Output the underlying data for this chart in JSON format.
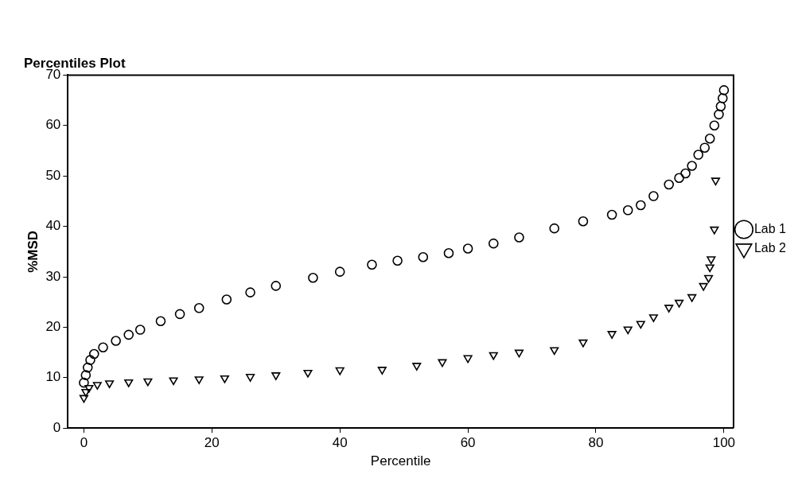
{
  "chart_data": {
    "type": "scatter",
    "title": "Percentiles Plot",
    "xlabel": "Percentile",
    "ylabel": "%MSD",
    "xlim": [
      -2.5,
      101.5
    ],
    "ylim": [
      0,
      70
    ],
    "xticks": [
      0,
      20,
      40,
      60,
      80,
      100
    ],
    "yticks": [
      0,
      10,
      20,
      30,
      40,
      50,
      60,
      70
    ],
    "grid": false,
    "legend": "right",
    "series": [
      {
        "name": "Lab 1",
        "color": "#000000",
        "marker": "circle",
        "x": [
          0,
          0.3,
          0.6,
          1,
          1.6,
          3,
          5,
          7,
          8.8,
          12,
          15,
          18,
          22.3,
          26,
          30,
          35.8,
          40,
          45,
          49,
          53,
          57,
          60,
          64,
          68,
          73.5,
          78,
          82.5,
          85,
          87,
          89,
          91.4,
          93,
          94,
          95,
          96,
          97,
          97.8,
          98.5,
          99.2,
          99.5,
          99.8,
          100
        ],
        "values": [
          9,
          10.5,
          12,
          13.5,
          14.7,
          16,
          17.3,
          18.5,
          19.5,
          21.2,
          22.6,
          23.8,
          25.5,
          26.9,
          28.2,
          29.8,
          31,
          32.4,
          33.2,
          33.9,
          34.7,
          35.6,
          36.6,
          37.8,
          39.6,
          41,
          42.3,
          43.2,
          44.2,
          46,
          48.3,
          49.6,
          50.5,
          52,
          54.2,
          55.6,
          57.4,
          60,
          62.2,
          63.8,
          65.4,
          67
        ]
      },
      {
        "name": "Lab 2",
        "color": "#000000",
        "marker": "triangle",
        "x": [
          0,
          0.3,
          0.8,
          2.1,
          4,
          7,
          10,
          14,
          18,
          22,
          26,
          30,
          35,
          40,
          46.6,
          52,
          56,
          60,
          64,
          68,
          73.5,
          78,
          82.5,
          85,
          87,
          89,
          91.4,
          93,
          95,
          96.8,
          97.6,
          97.8,
          98,
          98.5,
          98.7
        ],
        "values": [
          6,
          7.2,
          8,
          8.6,
          8.9,
          9.1,
          9.3,
          9.5,
          9.7,
          9.9,
          10.2,
          10.5,
          11,
          11.5,
          11.6,
          12.4,
          13.1,
          13.9,
          14.5,
          15,
          15.5,
          17,
          18.7,
          19.6,
          20.7,
          22,
          23.9,
          24.9,
          26,
          28.2,
          29.8,
          31.9,
          33.5,
          39.4,
          49.1
        ]
      }
    ]
  }
}
